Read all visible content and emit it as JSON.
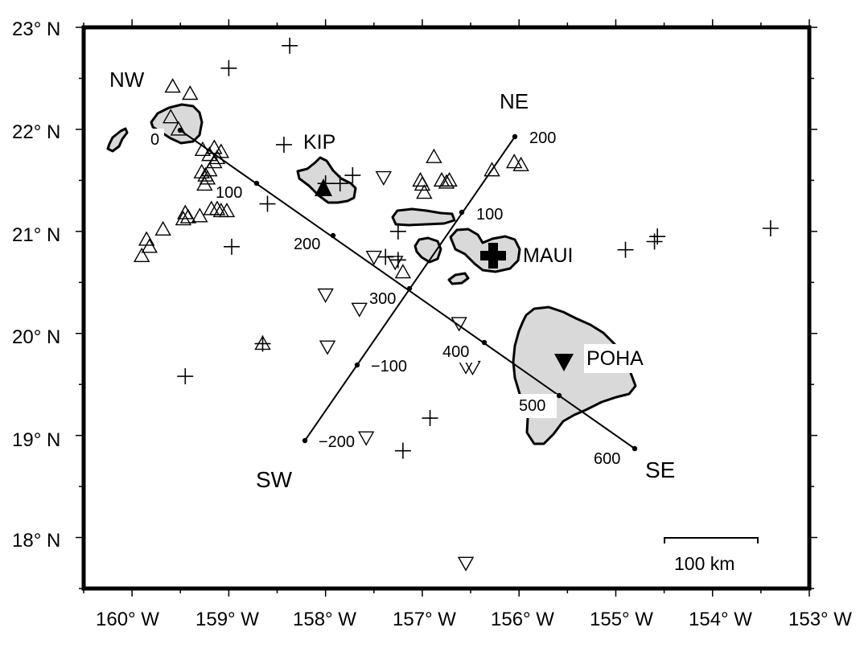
{
  "map": {
    "lon_range": [
      -160.5,
      -153
    ],
    "lat_range": [
      17.5,
      23
    ],
    "x_tick_labels": [
      "160° W",
      "159° W",
      "158° W",
      "157° W",
      "156° W",
      "155° W",
      "154° W",
      "153° W"
    ],
    "y_tick_labels": [
      "18° N",
      "19° N",
      "20° N",
      "21° N",
      "22° N",
      "23° N"
    ],
    "scale_bar": {
      "label": "100 km"
    },
    "land_color": "#d9d9d9"
  },
  "directions": {
    "nw": "NW",
    "ne": "NE",
    "sw": "SW",
    "se": "SE"
  },
  "stations": [
    {
      "code": "KIP",
      "lon": -158.01,
      "lat": 21.42,
      "symbol": "filled-triangle"
    },
    {
      "code": "MAUI",
      "lon": -156.28,
      "lat": 20.77,
      "symbol": "filled-cross"
    },
    {
      "code": "POHA",
      "lon": -155.53,
      "lat": 19.76,
      "symbol": "filled-inverted-triangle"
    }
  ],
  "profiles": [
    {
      "name": "NW-SE",
      "start": [
        -159.5,
        22.0
      ],
      "end": [
        -154.79,
        18.88
      ],
      "ticks": [
        "0",
        "100",
        "200",
        "300",
        "400",
        "500",
        "600"
      ]
    },
    {
      "name": "SW-NE",
      "start": [
        -158.2,
        18.97
      ],
      "end": [
        -156.03,
        21.93
      ],
      "ticks": [
        "−200",
        "−100",
        "100",
        "200"
      ]
    }
  ],
  "triangles": [
    [
      -159.58,
      22.42
    ],
    [
      -159.4,
      22.35
    ],
    [
      -159.6,
      22.12
    ],
    [
      -159.52,
      22.0
    ],
    [
      -159.27,
      21.8
    ],
    [
      -159.15,
      21.82
    ],
    [
      -159.08,
      21.78
    ],
    [
      -159.2,
      21.75
    ],
    [
      -159.12,
      21.72
    ],
    [
      -159.15,
      21.68
    ],
    [
      -159.22,
      21.52
    ],
    [
      -159.25,
      21.46
    ],
    [
      -159.28,
      21.58
    ],
    [
      -159.24,
      21.55
    ],
    [
      -159.2,
      21.6
    ],
    [
      -159.18,
      21.22
    ],
    [
      -159.08,
      21.2
    ],
    [
      -159.02,
      21.2
    ],
    [
      -159.12,
      21.22
    ],
    [
      -159.45,
      21.18
    ],
    [
      -159.42,
      21.14
    ],
    [
      -159.47,
      21.12
    ],
    [
      -159.3,
      21.15
    ],
    [
      -159.68,
      21.02
    ],
    [
      -159.85,
      20.92
    ],
    [
      -159.82,
      20.85
    ],
    [
      -159.9,
      20.76
    ],
    [
      -157.2,
      20.6
    ],
    [
      -156.88,
      21.73
    ],
    [
      -157.02,
      21.5
    ],
    [
      -157.0,
      21.46
    ],
    [
      -156.98,
      21.38
    ],
    [
      -156.8,
      21.5
    ],
    [
      -156.75,
      21.48
    ],
    [
      -156.72,
      21.5
    ],
    [
      -156.28,
      21.6
    ],
    [
      -156.05,
      21.68
    ],
    [
      -155.98,
      21.65
    ],
    [
      -158.65,
      19.9
    ]
  ],
  "inverted_triangles": [
    [
      -157.4,
      21.53
    ],
    [
      -157.5,
      20.75
    ],
    [
      -157.28,
      20.7
    ],
    [
      -158.0,
      20.38
    ],
    [
      -157.65,
      20.24
    ],
    [
      -157.98,
      19.87
    ],
    [
      -156.62,
      20.1
    ],
    [
      -156.55,
      19.68
    ],
    [
      -156.48,
      19.67
    ],
    [
      -157.58,
      18.98
    ],
    [
      -156.55,
      17.75
    ]
  ],
  "crosses": [
    [
      -158.37,
      22.82
    ],
    [
      -159.0,
      22.6
    ],
    [
      -158.43,
      21.85
    ],
    [
      -157.72,
      21.55
    ],
    [
      -158.0,
      21.47
    ],
    [
      -157.85,
      21.47
    ],
    [
      -158.6,
      21.27
    ],
    [
      -157.25,
      21.0
    ],
    [
      -157.38,
      20.75
    ],
    [
      -157.25,
      20.72
    ],
    [
      -158.97,
      20.85
    ],
    [
      -158.65,
      19.9
    ],
    [
      -159.45,
      19.58
    ],
    [
      -156.92,
      19.17
    ],
    [
      -157.2,
      18.85
    ],
    [
      -154.9,
      20.82
    ],
    [
      -154.57,
      20.95
    ],
    [
      -154.6,
      20.9
    ],
    [
      -153.4,
      21.03
    ]
  ]
}
